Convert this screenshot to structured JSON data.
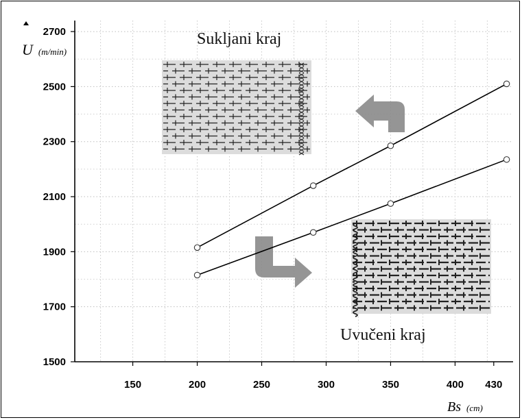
{
  "chart_data": {
    "type": "line",
    "x": [
      200,
      290,
      350,
      440
    ],
    "series": [
      {
        "values": [
          1915,
          2140,
          2285,
          2510
        ]
      },
      {
        "values": [
          1815,
          1970,
          2075,
          2235
        ]
      }
    ],
    "xlim": [
      105,
      445
    ],
    "ylim": [
      1500,
      2740
    ],
    "x_ticks": [
      150,
      200,
      250,
      300,
      350,
      400,
      430
    ],
    "y_ticks": [
      1500,
      1700,
      1900,
      2100,
      2300,
      2500,
      2700
    ],
    "ylabel": {
      "symbol": "U",
      "unit": "(m/min)"
    },
    "xlabel": {
      "symbol": "Bs",
      "unit": "(cm)"
    },
    "grid": "dotted",
    "annotations": {
      "top": "Sukljani kraj",
      "bottom": "Uvučeni kraj"
    },
    "colors": {
      "line": "#000000",
      "marker_fill": "#ffffff",
      "arrow": "#8a8a8a",
      "fabric_bg": "#dcdcdc"
    }
  }
}
